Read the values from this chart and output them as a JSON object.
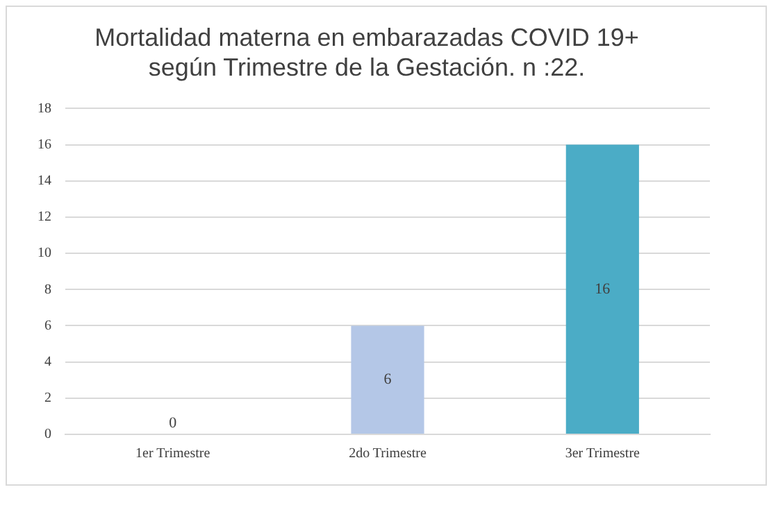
{
  "chart_data": {
    "type": "bar",
    "title": "Mortalidad materna en embarazadas COVID 19+\nsegún Trimestre de la Gestación. n :22.",
    "categories": [
      "1er Trimestre",
      "2do Trimestre",
      "3er Trimestre"
    ],
    "values": [
      0,
      6,
      16
    ],
    "colors": [
      "#b4c7e7",
      "#b4c7e7",
      "#4bacc6"
    ],
    "ylim": [
      0,
      18
    ],
    "yticks": [
      0,
      2,
      4,
      6,
      8,
      10,
      12,
      14,
      16,
      18
    ],
    "grid": "y",
    "data_labels": true,
    "legend": false
  }
}
